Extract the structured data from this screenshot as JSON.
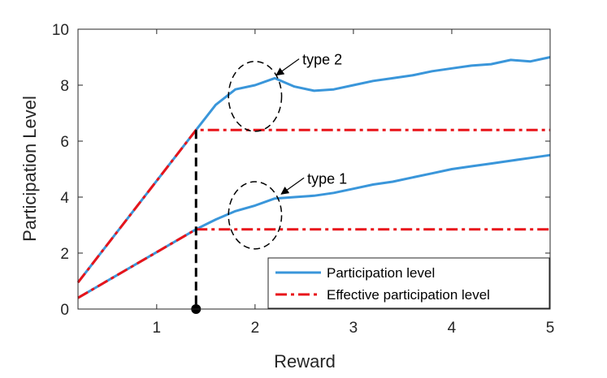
{
  "chart_data": {
    "type": "line",
    "title": "",
    "xlabel": "Reward",
    "ylabel": "Participation Level",
    "xlim": [
      0.2,
      5
    ],
    "ylim": [
      0,
      10
    ],
    "xticks": [
      1,
      2,
      3,
      4,
      5
    ],
    "yticks": [
      0,
      2,
      4,
      6,
      8,
      10
    ],
    "grid": false,
    "legend_position": "bottom-right",
    "series": [
      {
        "name": "Participation level",
        "color": "#3A96DA",
        "style": "solid",
        "lines": [
          {
            "x": [
              0.2,
              1.4,
              1.6,
              1.8,
              2.0,
              2.2,
              2.4,
              2.6,
              2.8,
              3.0,
              3.2,
              3.4,
              3.6,
              3.8,
              4.0,
              4.2,
              4.4,
              4.6,
              4.8,
              5.0
            ],
            "y": [
              0.95,
              6.4,
              7.3,
              7.85,
              8.0,
              8.25,
              7.95,
              7.8,
              7.85,
              8.0,
              8.15,
              8.25,
              8.35,
              8.5,
              8.6,
              8.7,
              8.75,
              8.9,
              8.85,
              9.0
            ]
          },
          {
            "x": [
              0.2,
              1.4,
              1.6,
              1.8,
              2.0,
              2.2,
              2.4,
              2.6,
              2.8,
              3.0,
              3.2,
              3.4,
              3.6,
              3.8,
              4.0,
              4.2,
              4.4,
              4.6,
              4.8,
              5.0
            ],
            "y": [
              0.4,
              2.85,
              3.2,
              3.5,
              3.7,
              3.95,
              4.0,
              4.05,
              4.15,
              4.3,
              4.45,
              4.55,
              4.7,
              4.85,
              5.0,
              5.1,
              5.2,
              5.3,
              5.4,
              5.5
            ]
          }
        ]
      },
      {
        "name": "Effective participation level",
        "color": "#E8141A",
        "style": "dash-dot",
        "lines": [
          {
            "x": [
              0.2,
              1.4,
              5.0
            ],
            "y": [
              0.95,
              6.4,
              6.4
            ]
          },
          {
            "x": [
              0.2,
              1.4,
              5.0
            ],
            "y": [
              0.4,
              2.85,
              2.85
            ]
          }
        ]
      }
    ],
    "annotations": [
      {
        "text": "type 2",
        "ellipse_center": [
          2.0,
          7.6
        ],
        "ellipse_radii": [
          0.27,
          1.25
        ],
        "arrow_to": [
          2.2,
          8.3
        ]
      },
      {
        "text": "type 1",
        "ellipse_center": [
          2.0,
          3.35
        ],
        "ellipse_radii": [
          0.27,
          1.2
        ],
        "arrow_to": [
          2.25,
          4.05
        ]
      }
    ],
    "marker": {
      "x": 1.4,
      "y": 0,
      "vertical_line_to_y": 6.4
    }
  }
}
